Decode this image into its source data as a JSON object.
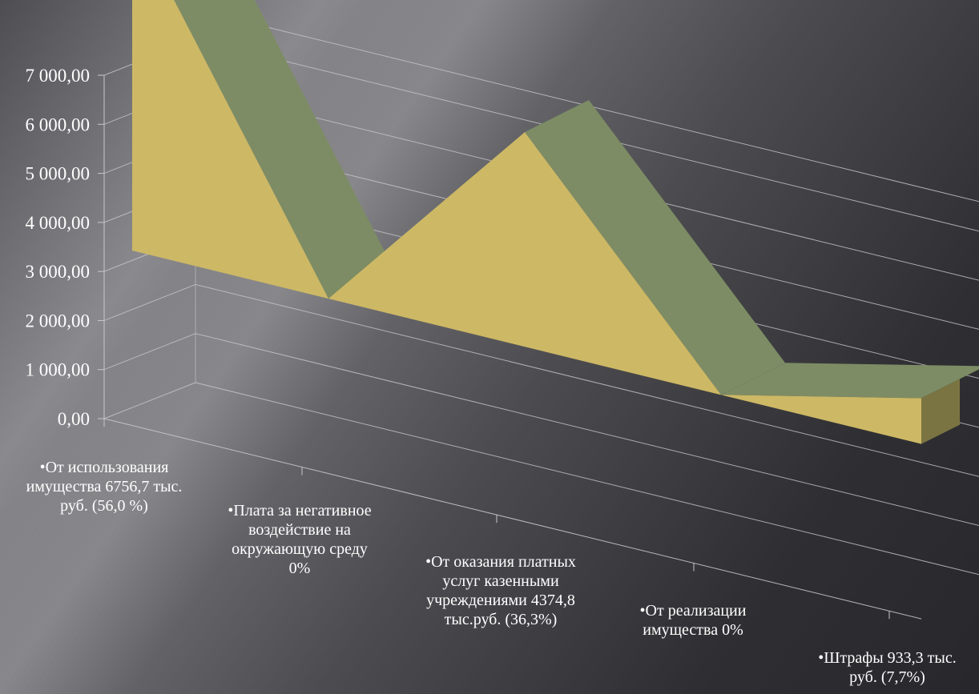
{
  "chart_data": {
    "type": "area",
    "three_d": true,
    "grid": true,
    "legend": "none",
    "ylim": [
      0,
      7000
    ],
    "ytick_labels": [
      "0,00",
      "1 000,00",
      "2 000,00",
      "3 000,00",
      "4 000,00",
      "5 000,00",
      "6 000,00",
      "7 000,00"
    ],
    "categories": [
      "•От использования имущества 6756,7 тыс. руб. (56,0 %)",
      "•Плата за негативное воздействие на окружающую среду 0%",
      "•От оказания платных услуг казенными учреждениями 4374,8 тыс.руб. (36,3%)",
      "•От реализации имущества 0%",
      "•Штрафы 933,3 тыс. руб. (7,7%)"
    ],
    "values": [
      6756.7,
      0,
      4374.8,
      0,
      933.3
    ],
    "colors": {
      "front": "#cdb865",
      "top": "#7d8c64",
      "side": "#7a7442",
      "grid": "#c8c8c8",
      "text": "#ffffff"
    }
  }
}
